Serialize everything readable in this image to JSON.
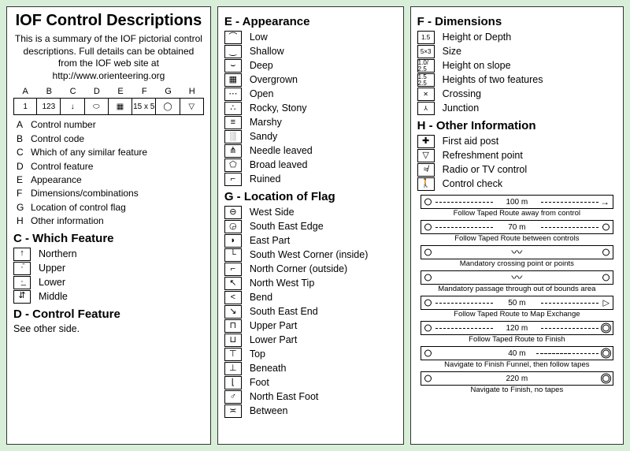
{
  "title": "IOF Control Descriptions",
  "intro": "This is a summary of the IOF pictorial control descriptions. Full details can be obtained from the IOF web site at http://www.orienteering.org",
  "cols8_header": [
    "A",
    "B",
    "C",
    "D",
    "E",
    "F",
    "G",
    "H"
  ],
  "cols8_example": [
    "1",
    "123",
    "↓",
    "⬭",
    "▦",
    "15 x 5",
    "◯",
    "▽"
  ],
  "letters": [
    {
      "k": "A",
      "v": "Control number"
    },
    {
      "k": "B",
      "v": "Control code"
    },
    {
      "k": "C",
      "v": "Which of any similar feature"
    },
    {
      "k": "D",
      "v": "Control feature"
    },
    {
      "k": "E",
      "v": "Appearance"
    },
    {
      "k": "F",
      "v": "Dimensions/combinations"
    },
    {
      "k": "G",
      "v": "Location of control flag"
    },
    {
      "k": "H",
      "v": "Other information"
    }
  ],
  "sec_c_title": "C - Which Feature",
  "sec_c": [
    {
      "s": "↑",
      "l": "Northern"
    },
    {
      "s": "·̄",
      "l": "Upper"
    },
    {
      "s": "·̲",
      "l": "Lower"
    },
    {
      "s": "⇵",
      "l": "Middle"
    }
  ],
  "sec_d_title": "D - Control Feature",
  "sec_d_text": "See other side.",
  "sec_e_title": "E - Appearance",
  "sec_e": [
    {
      "s": "⌒",
      "l": "Low"
    },
    {
      "s": "‿",
      "l": "Shallow"
    },
    {
      "s": "⌣",
      "l": "Deep"
    },
    {
      "s": "▦",
      "l": "Overgrown"
    },
    {
      "s": "⋯",
      "l": "Open"
    },
    {
      "s": "∴",
      "l": "Rocky, Stony"
    },
    {
      "s": "≡",
      "l": "Marshy"
    },
    {
      "s": "░",
      "l": "Sandy"
    },
    {
      "s": "⋔",
      "l": "Needle leaved"
    },
    {
      "s": "⬠",
      "l": "Broad leaved"
    },
    {
      "s": "⌐",
      "l": "Ruined"
    }
  ],
  "sec_g_title": "G - Location of Flag",
  "sec_g": [
    {
      "s": "⊖",
      "l": "West Side"
    },
    {
      "s": "◶",
      "l": "South East Edge"
    },
    {
      "s": "◗",
      "l": "East Part"
    },
    {
      "s": "└",
      "l": "South West Corner (inside)"
    },
    {
      "s": "⌐",
      "l": "North Corner (outside)"
    },
    {
      "s": "↖",
      "l": "North West Tip"
    },
    {
      "s": "<",
      "l": "Bend"
    },
    {
      "s": "↘",
      "l": "South East End"
    },
    {
      "s": "⊓",
      "l": "Upper Part"
    },
    {
      "s": "⊔",
      "l": "Lower Part"
    },
    {
      "s": "⊤",
      "l": "Top"
    },
    {
      "s": "⊥",
      "l": "Beneath"
    },
    {
      "s": "⌊",
      "l": "Foot"
    },
    {
      "s": "♂",
      "l": "North East Foot"
    },
    {
      "s": "≍",
      "l": "Between"
    }
  ],
  "sec_f_title": "F - Dimensions",
  "sec_f": [
    {
      "s": "1.5",
      "l": "Height or Depth"
    },
    {
      "s": "5×3",
      "l": "Size"
    },
    {
      "s": "1.0/\n2.5",
      "l": "Height on slope"
    },
    {
      "s": "1.5\n2.5",
      "l": "Heights of two features"
    },
    {
      "s": "✕",
      "l": "Crossing"
    },
    {
      "s": "⅄",
      "l": "Junction"
    }
  ],
  "sec_h_title": "H - Other Information",
  "sec_h": [
    {
      "s": "✚",
      "l": "First aid post"
    },
    {
      "s": "▽",
      "l": "Refreshment point"
    },
    {
      "s": "≉",
      "l": "Radio or TV control"
    },
    {
      "s": "🚶",
      "l": "Control check"
    }
  ],
  "routes": [
    {
      "dist": "100 m",
      "cap": "Follow Taped Route away from control",
      "left": "circ",
      "right": "arrow",
      "line": "dash"
    },
    {
      "dist": "70 m",
      "cap": "Follow Taped Route between controls",
      "left": "circ",
      "right": "circ",
      "line": "dash"
    },
    {
      "dist": "",
      "cap": "Mandatory crossing point or points",
      "left": "circ",
      "right": "circ",
      "line": "wave"
    },
    {
      "dist": "",
      "cap": "Mandatory passage through out of bounds area",
      "left": "circ",
      "right": "circ",
      "line": "wave"
    },
    {
      "dist": "50 m",
      "cap": "Follow Taped Route to Map Exchange",
      "left": "circ",
      "right": "tri",
      "line": "dash"
    },
    {
      "dist": "120 m",
      "cap": "Follow Taped Route to Finish",
      "left": "circ",
      "right": "dblcirc",
      "line": "dash"
    },
    {
      "dist": "40 m",
      "cap": "Navigate to Finish Funnel, then follow tapes",
      "left": "circ",
      "right": "dblcirc",
      "line": "partdash"
    },
    {
      "dist": "220 m",
      "cap": "Navigate to Finish, no tapes",
      "left": "circ",
      "right": "dblcirc",
      "line": "none"
    }
  ]
}
